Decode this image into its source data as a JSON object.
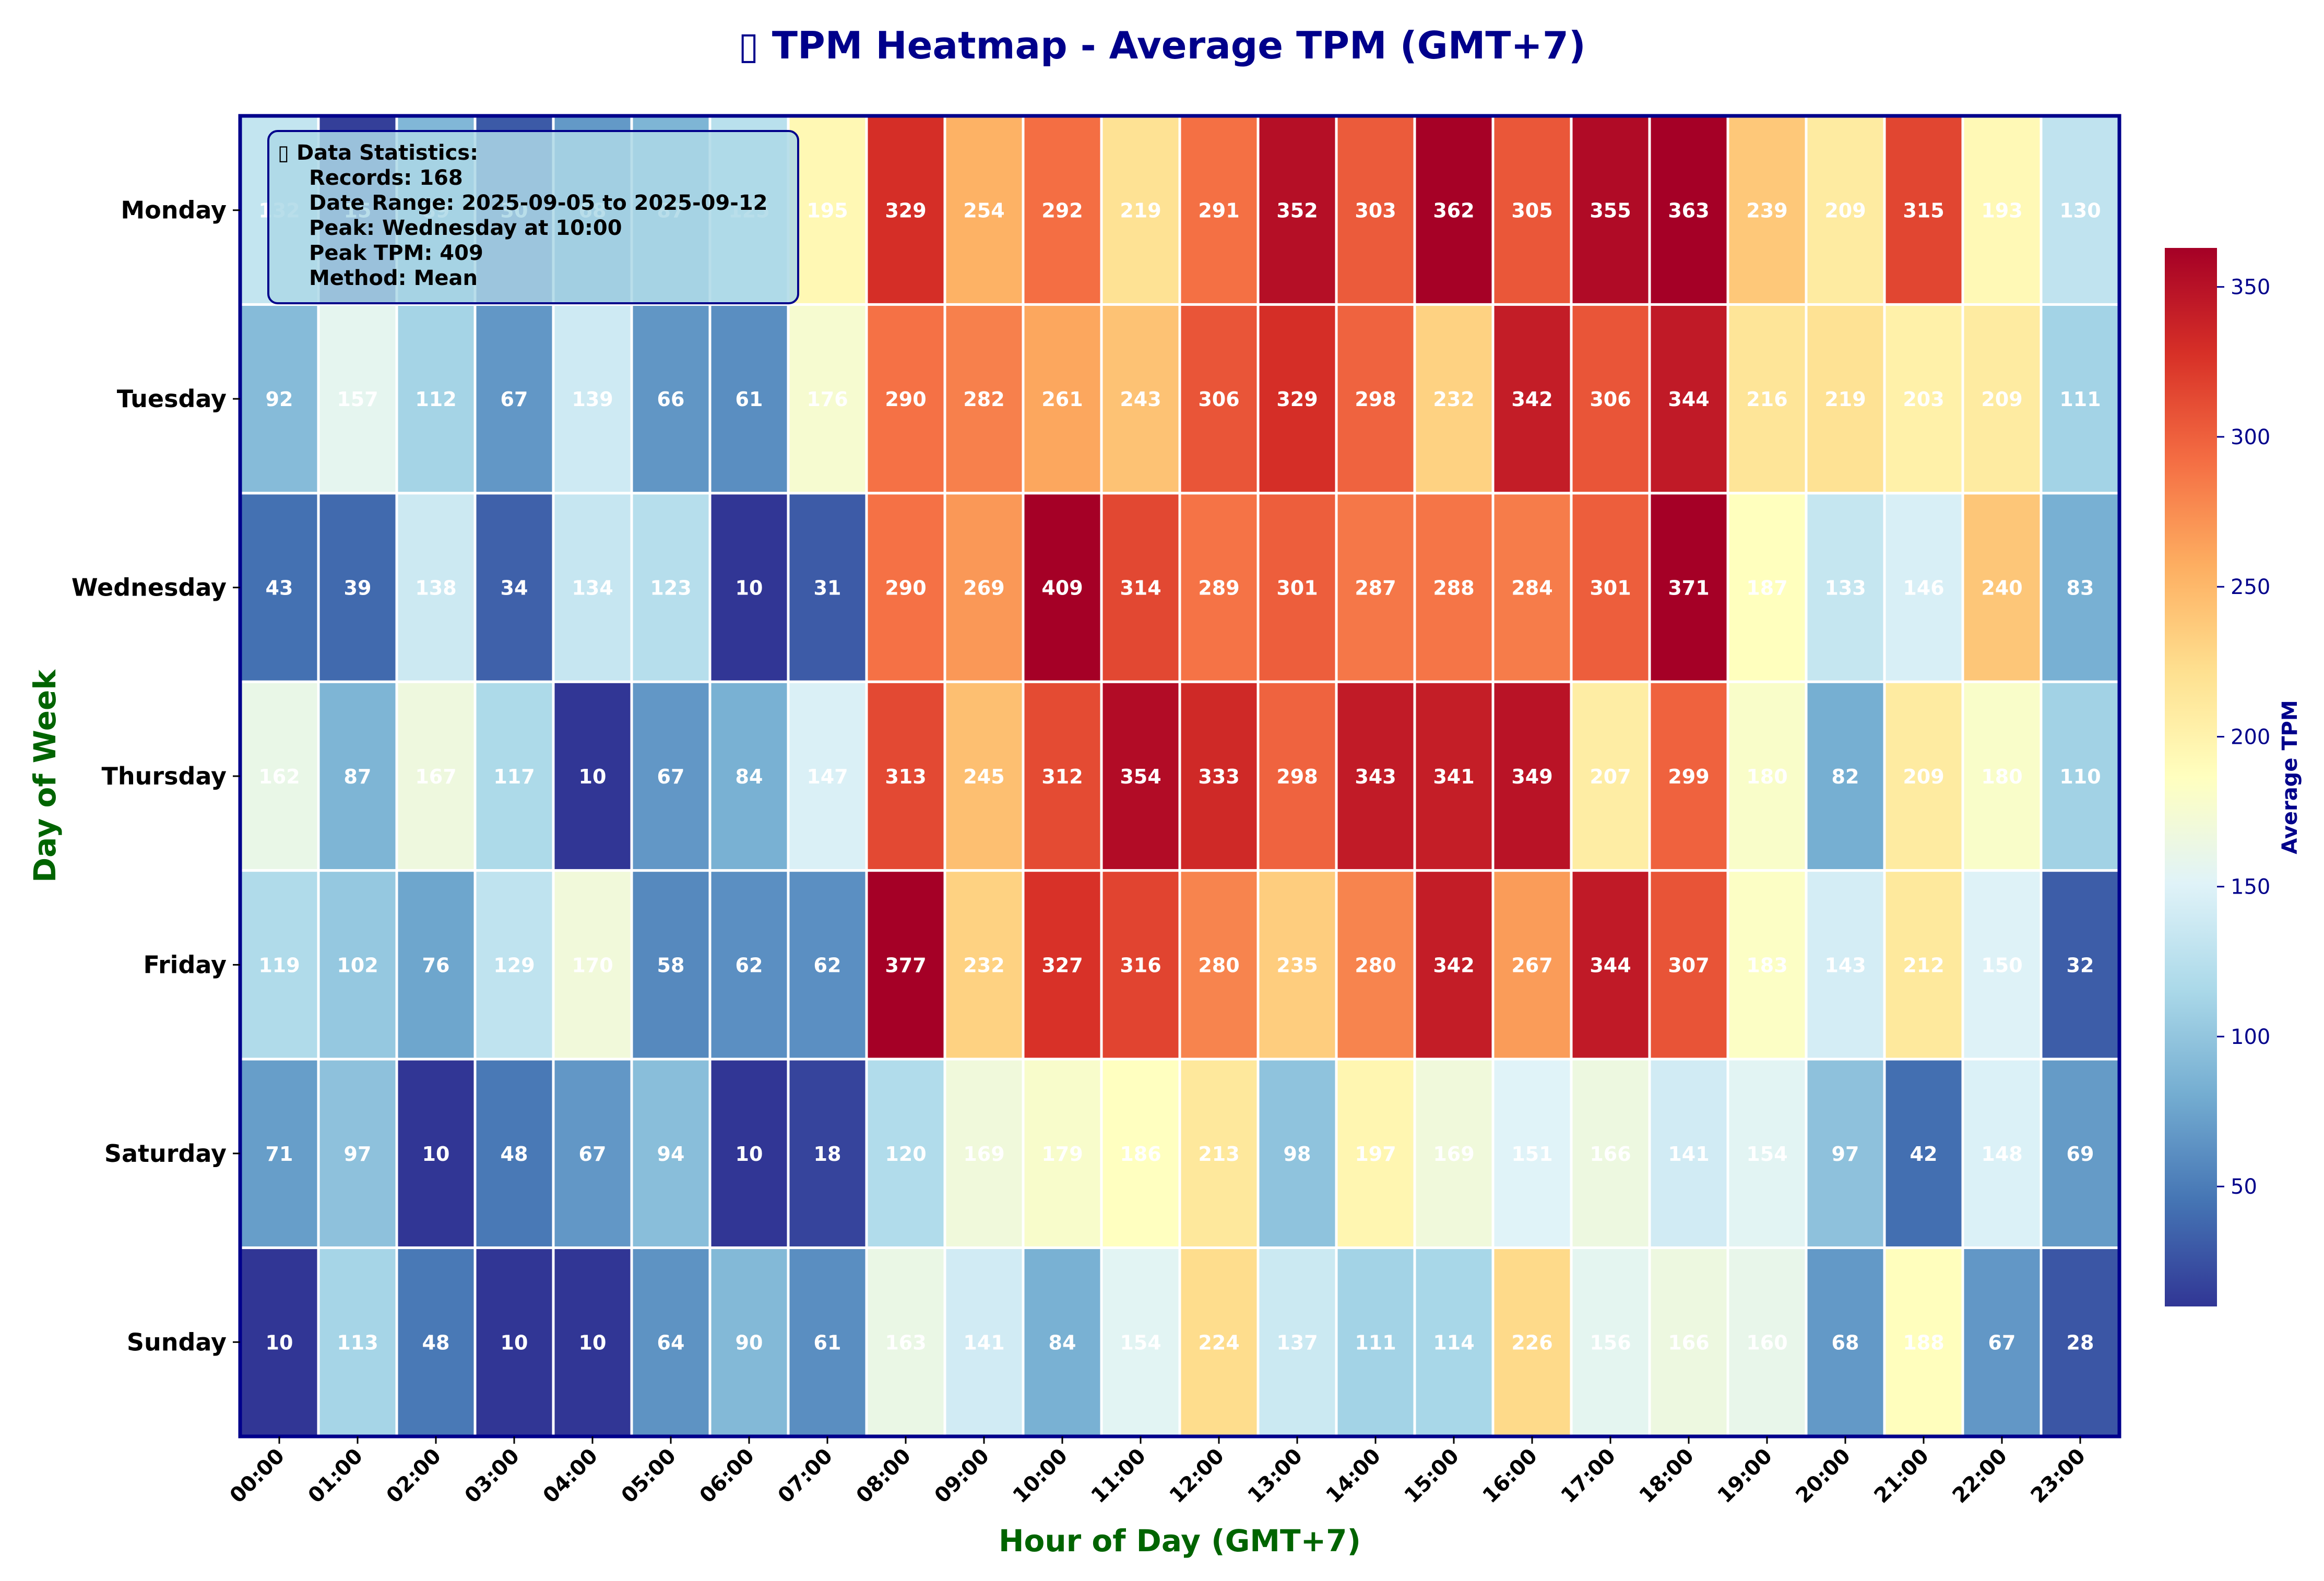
{
  "chart_data": {
    "type": "heatmap",
    "title": "▯ TPM Heatmap - Average TPM (GMT+7)",
    "xlabel": "Hour of Day (GMT+7)",
    "ylabel": "Day of Week",
    "colorbar_label": "Average TPM",
    "colorbar_ticks": [
      50,
      100,
      150,
      200,
      250,
      300,
      350
    ],
    "color_range": [
      10,
      363
    ],
    "colormap": "RdYlBu_r",
    "x": [
      "00:00",
      "01:00",
      "02:00",
      "03:00",
      "04:00",
      "05:00",
      "06:00",
      "07:00",
      "08:00",
      "09:00",
      "10:00",
      "11:00",
      "12:00",
      "13:00",
      "14:00",
      "15:00",
      "16:00",
      "17:00",
      "18:00",
      "19:00",
      "20:00",
      "21:00",
      "22:00",
      "23:00"
    ],
    "y": [
      "Monday",
      "Tuesday",
      "Wednesday",
      "Thursday",
      "Friday",
      "Saturday",
      "Sunday"
    ],
    "values": [
      [
        132,
        15,
        89,
        30,
        68,
        87,
        125,
        195,
        329,
        254,
        292,
        219,
        291,
        352,
        303,
        362,
        305,
        355,
        363,
        239,
        209,
        315,
        193,
        130
      ],
      [
        92,
        157,
        112,
        67,
        139,
        66,
        61,
        176,
        290,
        282,
        261,
        243,
        306,
        329,
        298,
        232,
        342,
        306,
        344,
        216,
        219,
        203,
        209,
        111
      ],
      [
        43,
        39,
        138,
        34,
        134,
        123,
        10,
        31,
        290,
        269,
        409,
        314,
        289,
        301,
        287,
        288,
        284,
        301,
        371,
        187,
        133,
        146,
        240,
        83
      ],
      [
        162,
        87,
        167,
        117,
        10,
        67,
        84,
        147,
        313,
        245,
        312,
        354,
        333,
        298,
        343,
        341,
        349,
        207,
        299,
        180,
        82,
        209,
        180,
        110
      ],
      [
        119,
        102,
        76,
        129,
        170,
        58,
        62,
        62,
        377,
        232,
        327,
        316,
        280,
        235,
        280,
        342,
        267,
        344,
        307,
        183,
        143,
        212,
        150,
        32
      ],
      [
        71,
        97,
        10,
        48,
        67,
        94,
        10,
        18,
        120,
        169,
        179,
        186,
        213,
        98,
        197,
        169,
        151,
        166,
        141,
        154,
        97,
        42,
        148,
        69
      ],
      [
        10,
        113,
        48,
        10,
        10,
        64,
        90,
        61,
        163,
        141,
        84,
        154,
        224,
        137,
        111,
        114,
        226,
        156,
        166,
        160,
        68,
        188,
        67,
        28
      ]
    ],
    "stats_box": [
      "▯ Data Statistics:",
      "Records: 168",
      "Date Range: 2025-09-05 to 2025-09-12",
      "Peak: Wednesday at 10:00",
      "Peak TPM: 409",
      "Method: Mean"
    ]
  },
  "colors": {
    "title": "#00008b",
    "axis_label": "#006400",
    "colorbar_label": "#00008b",
    "frame": "#00008b",
    "stats_box_fill": "#add8e6",
    "stats_box_edge": "#00008b"
  }
}
